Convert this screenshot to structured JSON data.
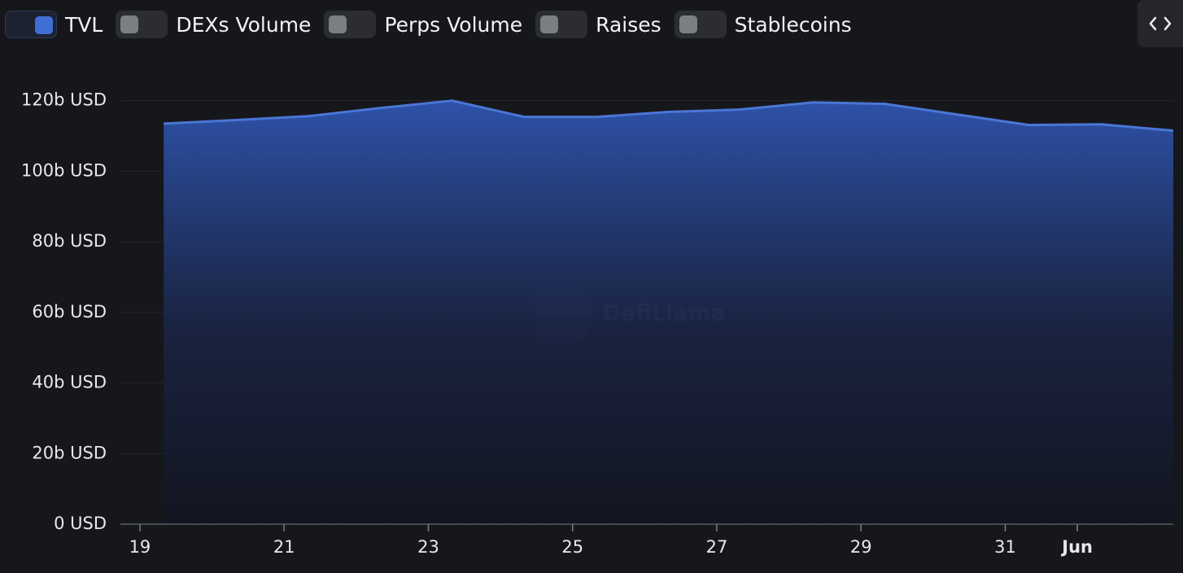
{
  "toggles": [
    "DEXs Volume",
    "Perps Volume",
    "Raises",
    "Stablecoins"
  ],
  "watermark": "DefiLlama",
  "chart_data": {
    "type": "area",
    "x": [
      19.33,
      20.33,
      21.33,
      22.33,
      23.33,
      24.33,
      25.33,
      26.33,
      27.33,
      28.33,
      29.33,
      30.33,
      31.33,
      32.33,
      33.33
    ],
    "series": [
      {
        "name": "TVL",
        "color": "#4a76d6",
        "values": [
          113.5,
          114.5,
          115.6,
          117.9,
          120.0,
          115.4,
          115.4,
          116.8,
          117.5,
          119.5,
          119.1,
          116.1,
          113.1,
          113.3,
          111.5
        ]
      }
    ],
    "xlim": [
      18.73,
      33.33
    ],
    "xticks": [
      19,
      21,
      23,
      25,
      27,
      29,
      31,
      {
        "value": 32,
        "label": "Jun"
      }
    ],
    "ylim": [
      0,
      125
    ],
    "yticks": [
      {
        "value": 0,
        "label": "0 USD"
      },
      {
        "value": 20,
        "label": "20b USD"
      },
      {
        "value": 40,
        "label": "40b USD"
      },
      {
        "value": 60,
        "label": "60b USD"
      },
      {
        "value": 80,
        "label": "80b USD"
      },
      {
        "value": 100,
        "label": "100b USD"
      },
      {
        "value": 120,
        "label": "120b USD"
      }
    ],
    "grid": true
  }
}
